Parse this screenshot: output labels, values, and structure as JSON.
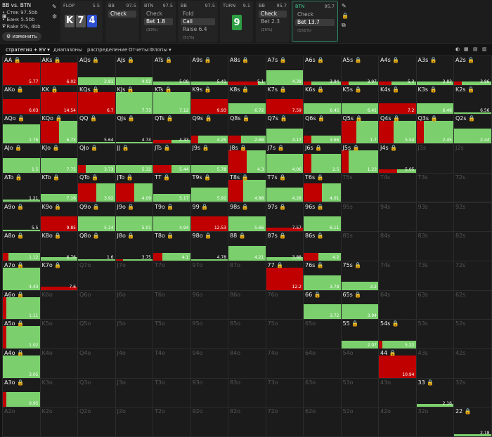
{
  "header": {
    "matchup": "BB vs. BTN",
    "stack": "Стек 97.5bb",
    "pot": "Банк 5.5bb",
    "rake": "Rake 5%, 4bb",
    "change_button": "изменить"
  },
  "panels": [
    {
      "title": "FLOP",
      "value": "5.5",
      "cards": [
        {
          "rank": "K",
          "color": "#555555"
        },
        {
          "rank": "7",
          "color": "#555555"
        },
        {
          "rank": "4",
          "color": "#2d4fd0"
        }
      ]
    },
    {
      "title": "BB",
      "value": "97.5",
      "options": [
        {
          "label": "Check",
          "pct": "",
          "sel": true
        }
      ]
    },
    {
      "title": "BTN",
      "value": "97.5",
      "options": [
        {
          "label": "Check",
          "pct": "",
          "sel": false
        },
        {
          "label": "Bet 1.8",
          "pct": "(33%)",
          "sel": true
        }
      ]
    },
    {
      "title": "BB",
      "value": "97.5",
      "options": [
        {
          "label": "Fold",
          "pct": "",
          "sel": false
        },
        {
          "label": "Call",
          "pct": "",
          "sel": true
        },
        {
          "label": "Raise 6.4",
          "pct": "(51%)",
          "sel": false
        }
      ]
    },
    {
      "title": "TURN",
      "value": "9.1",
      "cards": [
        {
          "rank": "9",
          "color": "#2e9e44"
        }
      ]
    },
    {
      "title": "BB",
      "value": "95.7",
      "options": [
        {
          "label": "Check",
          "pct": "",
          "sel": true
        },
        {
          "label": "Bet 2.3",
          "pct": "(25%)",
          "sel": false
        }
      ]
    },
    {
      "title": "BTN",
      "value": "95.7",
      "active": true,
      "options": [
        {
          "label": "Check",
          "pct": "",
          "sel": false
        },
        {
          "label": "Bet 13.7",
          "pct": "(151%)",
          "sel": true
        }
      ]
    }
  ],
  "tabs": [
    "стратегия + EV",
    "диапазоны",
    "распределение",
    "Отчеты:Флопы"
  ],
  "colors": {
    "bet": "#c00000",
    "check": "#7bd06d",
    "background": "#141414"
  },
  "grid": [
    {
      "hand": "AA",
      "ev": "5.77",
      "bet": 1,
      "freq": 1
    },
    {
      "hand": "AKs",
      "ev": "6.02",
      "bet": 1,
      "freq": 1
    },
    {
      "hand": "AQs",
      "ev": "2.81",
      "bet": 0,
      "freq": 0.33
    },
    {
      "hand": "AJs",
      "ev": "4.02",
      "bet": 0,
      "freq": 0.33
    },
    {
      "hand": "ATs",
      "ev": "5.09",
      "bet": 0,
      "freq": 0.15
    },
    {
      "hand": "A9s",
      "ev": "5.41",
      "bet": 0,
      "freq": 0.15
    },
    {
      "hand": "A8s",
      "ev": "5.1",
      "bet": 0.8,
      "freq": 0.15
    },
    {
      "hand": "A7s",
      "ev": "4.39",
      "bet": 0,
      "freq": 0.66
    },
    {
      "hand": "A6s",
      "ev": "3.94",
      "bet": 0.2,
      "freq": 0.15
    },
    {
      "hand": "A5s",
      "ev": "3.97",
      "bet": 0.2,
      "freq": 0.15
    },
    {
      "hand": "A4s",
      "ev": "5.3",
      "bet": 0.35,
      "freq": 0.15
    },
    {
      "hand": "A3s",
      "ev": "3.83",
      "bet": 0,
      "freq": 0.15
    },
    {
      "hand": "A2s",
      "ev": "3.86",
      "bet": 0.2,
      "freq": 0.15
    },
    {
      "hand": "AKo",
      "ev": "6.03",
      "bet": 1,
      "freq": 0.66
    },
    {
      "hand": "KK",
      "ev": "14.54",
      "bet": 1,
      "freq": 1
    },
    {
      "hand": "KQs",
      "ev": "6.7",
      "bet": 1,
      "freq": 1
    },
    {
      "hand": "KJs",
      "ev": "7.73",
      "bet": 0,
      "freq": 1
    },
    {
      "hand": "KTs",
      "ev": "7.12",
      "bet": 0,
      "freq": 1
    },
    {
      "hand": "K9s",
      "ev": "9.93",
      "bet": 1,
      "freq": 0.66
    },
    {
      "hand": "K8s",
      "ev": "6.72",
      "bet": 0,
      "freq": 0.5
    },
    {
      "hand": "K7s",
      "ev": "7.59",
      "bet": 1,
      "freq": 0.66
    },
    {
      "hand": "K6s",
      "ev": "6.45",
      "bet": 0,
      "freq": 0.5
    },
    {
      "hand": "K5s",
      "ev": "6.41",
      "bet": 0,
      "freq": 0.5
    },
    {
      "hand": "K4s",
      "ev": "7.2",
      "bet": 1,
      "freq": 0.5
    },
    {
      "hand": "K3s",
      "ev": "6.46",
      "bet": 0,
      "freq": 0.5
    },
    {
      "hand": "K2s",
      "ev": "6.56",
      "bet": 0,
      "freq": 0.05
    },
    {
      "hand": "AQo",
      "ev": "1.76",
      "bet": 0,
      "freq": 0.85
    },
    {
      "hand": "KQo",
      "ev": "6.73",
      "bet": 0.5,
      "freq": 1
    },
    {
      "hand": "QQ",
      "ev": "5.64",
      "bet": 0,
      "freq": 0.05
    },
    {
      "hand": "QJs",
      "ev": "4.74",
      "bet": 0,
      "freq": 0.05
    },
    {
      "hand": "QTs",
      "ev": "4.33",
      "bet": 0.5,
      "freq": 0.15
    },
    {
      "hand": "Q9s",
      "ev": "4.25",
      "bet": 0.2,
      "freq": 0.35
    },
    {
      "hand": "Q8s",
      "ev": "2.68",
      "bet": 0.35,
      "freq": 0.35
    },
    {
      "hand": "Q7s",
      "ev": "4.17",
      "bet": 0,
      "freq": 0.66
    },
    {
      "hand": "Q6s",
      "ev": "3.66",
      "bet": 0.2,
      "freq": 0.35
    },
    {
      "hand": "Q5s",
      "ev": "1.7",
      "bet": 0.4,
      "freq": 1
    },
    {
      "hand": "Q4s",
      "ev": "5.54",
      "bet": 0.4,
      "freq": 1
    },
    {
      "hand": "Q3s",
      "ev": "2.45",
      "bet": 0.2,
      "freq": 1
    },
    {
      "hand": "Q2s",
      "ev": "2.44",
      "bet": 0,
      "freq": 0.66
    },
    {
      "hand": "AJo",
      "ev": "1.5",
      "bet": 0,
      "freq": 0.66
    },
    {
      "hand": "KJo",
      "ev": "7.75",
      "bet": 0,
      "freq": 0.66
    },
    {
      "hand": "QJo",
      "ev": "3.73",
      "bet": 0.2,
      "freq": 0.35
    },
    {
      "hand": "JJ",
      "ev": "5.32",
      "bet": 0,
      "freq": 0.35
    },
    {
      "hand": "JTs",
      "ev": "5.44",
      "bet": 0.5,
      "freq": 0.35
    },
    {
      "hand": "J9s",
      "ev": "5.78",
      "bet": 0,
      "freq": 0.35
    },
    {
      "hand": "J8s",
      "ev": "4.3",
      "bet": 0.5,
      "freq": 1
    },
    {
      "hand": "J7s",
      "ev": "4.06",
      "bet": 0,
      "freq": 0.85
    },
    {
      "hand": "J6s",
      "ev": "2.5",
      "bet": 0.2,
      "freq": 0.85
    },
    {
      "hand": "J5s",
      "ev": "1.23",
      "bet": 0.2,
      "freq": 1
    },
    {
      "hand": "J4s",
      "ev": "5.05",
      "bet": 0.5,
      "freq": 0.15
    },
    {
      "hand": "J3s",
      "off": true
    },
    {
      "hand": "J2s",
      "off": true
    },
    {
      "hand": "ATo",
      "ev": "1.21",
      "bet": 0,
      "freq": 0.1
    },
    {
      "hand": "KTo",
      "ev": "7.16",
      "bet": 0,
      "freq": 0.35
    },
    {
      "hand": "QTo",
      "ev": "3.92",
      "bet": 0.5,
      "freq": 0.85
    },
    {
      "hand": "JTo",
      "ev": "4.09",
      "bet": 0.5,
      "freq": 0.85
    },
    {
      "hand": "TT",
      "ev": "5.17",
      "bet": 0,
      "freq": 0.35
    },
    {
      "hand": "T9s",
      "ev": "5.91",
      "bet": 0,
      "freq": 0.66
    },
    {
      "hand": "T8s",
      "ev": "4.88",
      "bet": 0.4,
      "freq": 1
    },
    {
      "hand": "T7s",
      "ev": "4.28",
      "bet": 0,
      "freq": 0.66
    },
    {
      "hand": "T6s",
      "ev": "4.01",
      "bet": 0.5,
      "freq": 0.85
    },
    {
      "hand": "T5s",
      "off": true
    },
    {
      "hand": "T4s",
      "off": true
    },
    {
      "hand": "T3s",
      "off": true
    },
    {
      "hand": "T2s",
      "off": true
    },
    {
      "hand": "A9o",
      "ev": "5.5",
      "bet": 0,
      "freq": 0.05
    },
    {
      "hand": "K9o",
      "ev": "9.85",
      "bet": 1,
      "freq": 0.66
    },
    {
      "hand": "Q9o",
      "ev": "5.14",
      "bet": 0,
      "freq": 0.66
    },
    {
      "hand": "J9o",
      "ev": "5.01",
      "bet": 0,
      "freq": 0.66
    },
    {
      "hand": "T9o",
      "ev": "4.94",
      "bet": 0,
      "freq": 0.66
    },
    {
      "hand": "99",
      "ev": "12.53",
      "bet": 1,
      "freq": 0.66
    },
    {
      "hand": "98s",
      "ev": "5.66",
      "bet": 0,
      "freq": 0.66
    },
    {
      "hand": "97s",
      "ev": "7.57",
      "bet": 1,
      "freq": 0.15
    },
    {
      "hand": "96s",
      "ev": "6.11",
      "bet": 0,
      "freq": 0.66
    },
    {
      "hand": "95s",
      "off": true
    },
    {
      "hand": "94s",
      "off": true
    },
    {
      "hand": "93s",
      "off": true
    },
    {
      "hand": "92s",
      "off": true
    },
    {
      "hand": "A8o",
      "ev": "1.12",
      "bet": 0.15,
      "freq": 0.35
    },
    {
      "hand": "K8o",
      "ev": "6.76",
      "bet": 0,
      "freq": 0.15
    },
    {
      "hand": "Q8o",
      "ev": "1.6",
      "bet": 0,
      "freq": 0.05
    },
    {
      "hand": "J8o",
      "ev": "3.75",
      "bet": 0.2,
      "freq": 0.05
    },
    {
      "hand": "T8o",
      "ev": "4.1",
      "bet": 0.25,
      "freq": 0.35
    },
    {
      "hand": "98o",
      "ev": "4.78",
      "bet": 0,
      "freq": 0.05
    },
    {
      "hand": "88",
      "ev": "4.21",
      "bet": 0,
      "freq": 0.66
    },
    {
      "hand": "87s",
      "ev": "3.88",
      "bet": 0,
      "freq": 0.15
    },
    {
      "hand": "86s",
      "ev": "4.2",
      "bet": 0.4,
      "freq": 0.35
    },
    {
      "hand": "85s",
      "off": true
    },
    {
      "hand": "84s",
      "off": true
    },
    {
      "hand": "83s",
      "off": true
    },
    {
      "hand": "82s",
      "off": true
    },
    {
      "hand": "A7o",
      "ev": "4.43",
      "bet": 0,
      "freq": 1
    },
    {
      "hand": "K7o",
      "ev": "7.6",
      "bet": 1,
      "freq": 0.15
    },
    {
      "hand": "Q7o",
      "off": true
    },
    {
      "hand": "J7o",
      "off": true
    },
    {
      "hand": "T7o",
      "off": true
    },
    {
      "hand": "97o",
      "off": true
    },
    {
      "hand": "87o",
      "off": true
    },
    {
      "hand": "77",
      "ev": "12.2",
      "bet": 1,
      "freq": 1
    },
    {
      "hand": "76s",
      "ev": "3.78",
      "bet": 0,
      "freq": 0.66
    },
    {
      "hand": "75s",
      "ev": "3.2",
      "bet": 0,
      "freq": 0.35
    },
    {
      "hand": "74s",
      "off": true
    },
    {
      "hand": "73s",
      "off": true
    },
    {
      "hand": "72s",
      "off": true
    },
    {
      "hand": "A6o",
      "ev": "1.11",
      "bet": 0.1,
      "freq": 1
    },
    {
      "hand": "K6o",
      "off": true
    },
    {
      "hand": "Q6o",
      "off": true
    },
    {
      "hand": "J6o",
      "off": true
    },
    {
      "hand": "T6o",
      "off": true
    },
    {
      "hand": "96o",
      "off": true
    },
    {
      "hand": "86o",
      "off": true
    },
    {
      "hand": "76o",
      "off": true
    },
    {
      "hand": "66",
      "ev": "3.72",
      "bet": 0,
      "freq": 0.66
    },
    {
      "hand": "65s",
      "ev": "3.94",
      "bet": 0,
      "freq": 0.66
    },
    {
      "hand": "64s",
      "off": true
    },
    {
      "hand": "63s",
      "off": true
    },
    {
      "hand": "62s",
      "off": true
    },
    {
      "hand": "A5o",
      "ev": "1.02",
      "bet": 0.1,
      "freq": 1
    },
    {
      "hand": "K5o",
      "off": true
    },
    {
      "hand": "Q5o",
      "off": true
    },
    {
      "hand": "J5o",
      "off": true
    },
    {
      "hand": "T5o",
      "off": true
    },
    {
      "hand": "95o",
      "off": true
    },
    {
      "hand": "85o",
      "off": true
    },
    {
      "hand": "75o",
      "off": true
    },
    {
      "hand": "65o",
      "off": true
    },
    {
      "hand": "55",
      "ev": "2.07",
      "bet": 0,
      "freq": 0.35
    },
    {
      "hand": "54s",
      "ev": "5.22",
      "bet": 0.1,
      "freq": 0.35
    },
    {
      "hand": "53s",
      "off": true
    },
    {
      "hand": "52s",
      "off": true
    },
    {
      "hand": "A4o",
      "ev": "3.05",
      "bet": 0,
      "freq": 1
    },
    {
      "hand": "K4o",
      "off": true
    },
    {
      "hand": "Q4o",
      "off": true
    },
    {
      "hand": "J4o",
      "off": true
    },
    {
      "hand": "T4o",
      "off": true
    },
    {
      "hand": "94o",
      "off": true
    },
    {
      "hand": "84o",
      "off": true
    },
    {
      "hand": "74o",
      "off": true
    },
    {
      "hand": "64o",
      "off": true
    },
    {
      "hand": "54o",
      "off": true
    },
    {
      "hand": "44",
      "ev": "10.94",
      "bet": 1,
      "freq": 1
    },
    {
      "hand": "43s",
      "off": true
    },
    {
      "hand": "42s",
      "off": true
    },
    {
      "hand": "A3o",
      "ev": "0.95",
      "bet": 0.1,
      "freq": 0.66
    },
    {
      "hand": "K3o",
      "off": true
    },
    {
      "hand": "Q3o",
      "off": true
    },
    {
      "hand": "J3o",
      "off": true
    },
    {
      "hand": "T3o",
      "off": true
    },
    {
      "hand": "93o",
      "off": true
    },
    {
      "hand": "83o",
      "off": true
    },
    {
      "hand": "73o",
      "off": true
    },
    {
      "hand": "63o",
      "off": true
    },
    {
      "hand": "53o",
      "off": true
    },
    {
      "hand": "43o",
      "off": true
    },
    {
      "hand": "33",
      "ev": "2.16",
      "bet": 0,
      "freq": 0.15
    },
    {
      "hand": "32s",
      "off": true
    },
    {
      "hand": "A2o",
      "off": true
    },
    {
      "hand": "K2o",
      "off": true
    },
    {
      "hand": "Q2o",
      "off": true
    },
    {
      "hand": "J2o",
      "off": true
    },
    {
      "hand": "T2o",
      "off": true
    },
    {
      "hand": "92o",
      "off": true
    },
    {
      "hand": "82o",
      "off": true
    },
    {
      "hand": "72o",
      "off": true
    },
    {
      "hand": "62o",
      "off": true
    },
    {
      "hand": "52o",
      "off": true
    },
    {
      "hand": "42o",
      "off": true
    },
    {
      "hand": "32o",
      "off": true
    },
    {
      "hand": "22",
      "ev": "2.18",
      "bet": 0,
      "freq": 0.1
    }
  ]
}
